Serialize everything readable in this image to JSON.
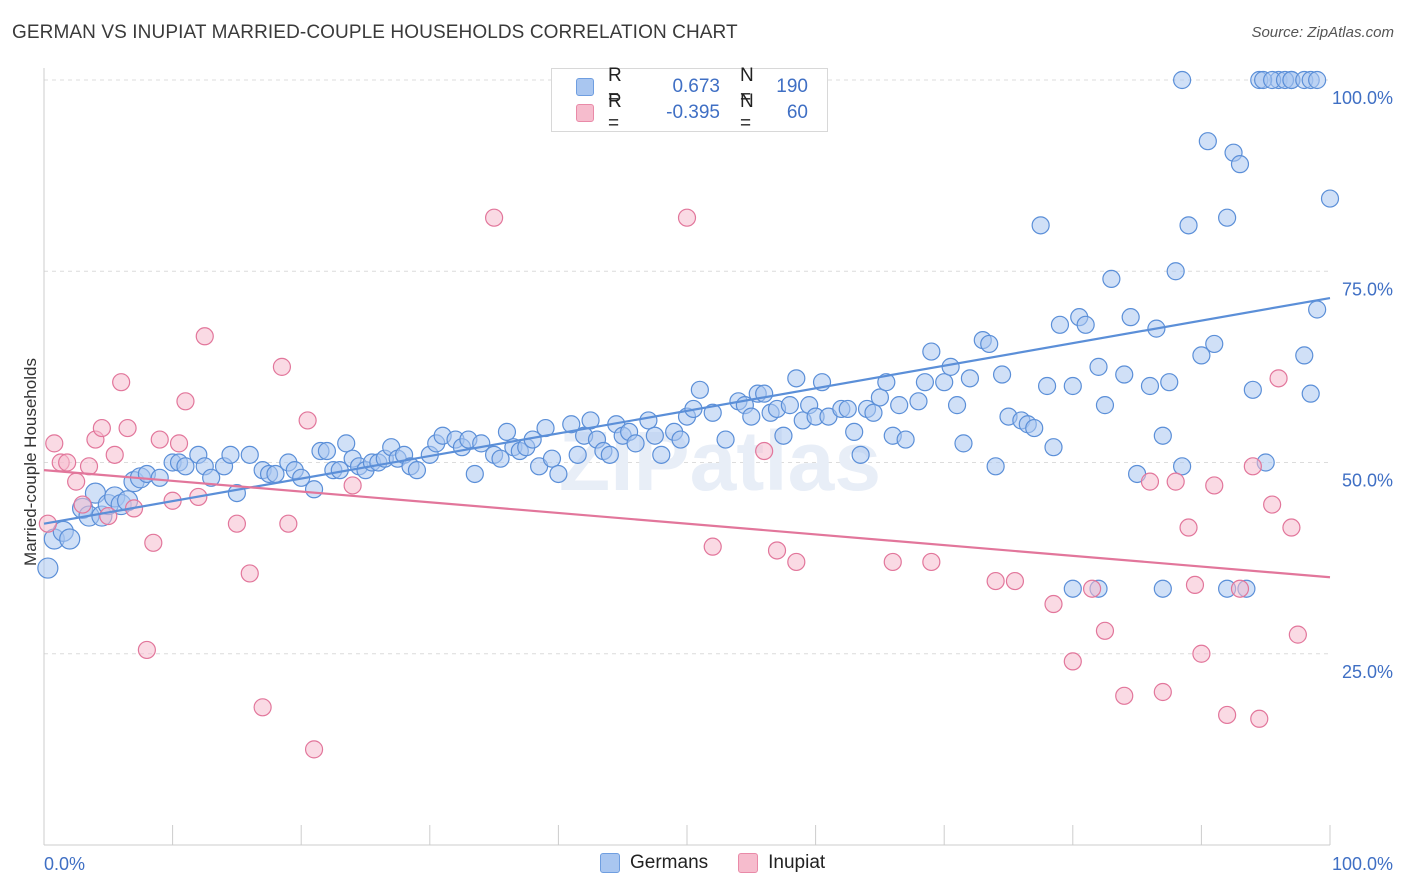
{
  "title": "GERMAN VS INUPIAT MARRIED-COUPLE HOUSEHOLDS CORRELATION CHART",
  "source": "Source: ZipAtlas.com",
  "watermark": "ZIPatlas",
  "legend": {
    "r_label": "R =",
    "n_label": "N =",
    "rows": [
      {
        "r": "0.673",
        "n": "190",
        "fill": "#a9c6f0",
        "stroke": "#6f9ee0"
      },
      {
        "r": "-0.395",
        "n": "60",
        "fill": "#f6bccd",
        "stroke": "#e98aa8"
      }
    ]
  },
  "bottom_legend": [
    {
      "label": "Germans",
      "fill": "#a9c6f0",
      "stroke": "#6f9ee0"
    },
    {
      "label": "Inupiat",
      "fill": "#f6bccd",
      "stroke": "#e98aa8"
    }
  ],
  "chart_data": {
    "type": "scatter",
    "title": "GERMAN VS INUPIAT MARRIED-COUPLE HOUSEHOLDS CORRELATION CHART",
    "xlabel": "",
    "ylabel": "Married-couple Households",
    "xlim": [
      0,
      100
    ],
    "ylim": [
      0,
      100
    ],
    "x_tick_labels": [
      "0.0%",
      "100.0%"
    ],
    "y_ticks": [
      25,
      50,
      75,
      100
    ],
    "y_tick_labels": [
      "25.0%",
      "50.0%",
      "75.0%",
      "100.0%"
    ],
    "grid": true,
    "series": [
      {
        "name": "Germans",
        "color": "#5b8fd8",
        "fill": "#a9c6f0",
        "trend": [
          [
            0,
            42.0
          ],
          [
            100,
            71.5
          ]
        ],
        "points": [
          [
            0.3,
            36.2
          ],
          [
            0.8,
            40
          ],
          [
            1.5,
            41
          ],
          [
            2,
            40
          ],
          [
            3,
            44
          ],
          [
            3.5,
            43
          ],
          [
            4,
            46
          ],
          [
            4.5,
            43
          ],
          [
            5,
            44.5
          ],
          [
            5.5,
            45.5
          ],
          [
            6,
            44.5
          ],
          [
            6.5,
            45
          ],
          [
            7,
            47.5
          ],
          [
            7.5,
            48
          ],
          [
            8,
            48.5
          ],
          [
            9,
            48
          ],
          [
            10,
            50
          ],
          [
            10.5,
            50
          ],
          [
            11,
            49.5
          ],
          [
            12,
            51
          ],
          [
            12.5,
            49.5
          ],
          [
            13,
            48
          ],
          [
            14,
            49.5
          ],
          [
            14.5,
            51
          ],
          [
            15,
            46
          ],
          [
            16,
            51
          ],
          [
            17,
            49
          ],
          [
            17.5,
            48.5
          ],
          [
            18,
            48.5
          ],
          [
            19,
            50
          ],
          [
            19.5,
            49
          ],
          [
            20,
            48
          ],
          [
            21,
            46.5
          ],
          [
            21.5,
            51.5
          ],
          [
            22,
            51.5
          ],
          [
            22.5,
            49
          ],
          [
            23,
            49
          ],
          [
            23.5,
            52.5
          ],
          [
            24,
            50.5
          ],
          [
            24.5,
            49.5
          ],
          [
            25,
            49
          ],
          [
            25.5,
            50
          ],
          [
            26,
            50
          ],
          [
            26.5,
            50.5
          ],
          [
            27,
            52
          ],
          [
            27.5,
            50.5
          ],
          [
            28,
            51
          ],
          [
            28.5,
            49.5
          ],
          [
            29,
            49
          ],
          [
            30,
            51
          ],
          [
            30.5,
            52.5
          ],
          [
            31,
            53.5
          ],
          [
            32,
            53
          ],
          [
            32.5,
            52
          ],
          [
            33,
            53
          ],
          [
            33.5,
            48.5
          ],
          [
            34,
            52.5
          ],
          [
            35,
            51
          ],
          [
            35.5,
            50.5
          ],
          [
            36,
            54
          ],
          [
            36.5,
            52
          ],
          [
            37,
            51.5
          ],
          [
            37.5,
            52
          ],
          [
            38,
            53
          ],
          [
            38.5,
            49.5
          ],
          [
            39,
            54.5
          ],
          [
            39.5,
            50.5
          ],
          [
            40,
            48.5
          ],
          [
            41,
            55
          ],
          [
            41.5,
            51
          ],
          [
            42,
            53.5
          ],
          [
            42.5,
            55.5
          ],
          [
            43,
            53
          ],
          [
            43.5,
            51.5
          ],
          [
            44,
            51
          ],
          [
            44.5,
            55
          ],
          [
            45,
            53.5
          ],
          [
            45.5,
            54
          ],
          [
            46,
            52.5
          ],
          [
            47,
            55.5
          ],
          [
            47.5,
            53.5
          ],
          [
            48,
            51
          ],
          [
            49,
            54
          ],
          [
            49.5,
            53
          ],
          [
            50,
            56
          ],
          [
            50.5,
            57
          ],
          [
            51,
            59.5
          ],
          [
            52,
            56.5
          ],
          [
            53,
            53
          ],
          [
            54,
            58
          ],
          [
            54.5,
            57.5
          ],
          [
            55,
            56
          ],
          [
            55.5,
            59
          ],
          [
            56,
            59
          ],
          [
            56.5,
            56.5
          ],
          [
            57,
            57
          ],
          [
            57.5,
            53.5
          ],
          [
            58,
            57.5
          ],
          [
            58.5,
            61
          ],
          [
            59,
            55.5
          ],
          [
            59.5,
            57.5
          ],
          [
            60,
            56
          ],
          [
            60.5,
            60.5
          ],
          [
            61,
            56
          ],
          [
            62,
            57
          ],
          [
            62.5,
            57
          ],
          [
            63,
            54
          ],
          [
            63.5,
            51
          ],
          [
            64,
            57
          ],
          [
            64.5,
            56.5
          ],
          [
            65,
            58.5
          ],
          [
            65.5,
            60.5
          ],
          [
            66,
            53.5
          ],
          [
            66.5,
            57.5
          ],
          [
            67,
            53
          ],
          [
            68,
            58
          ],
          [
            68.5,
            60.5
          ],
          [
            69,
            64.5
          ],
          [
            70,
            60.5
          ],
          [
            70.5,
            62.5
          ],
          [
            71,
            57.5
          ],
          [
            71.5,
            52.5
          ],
          [
            72,
            61
          ],
          [
            73,
            66
          ],
          [
            73.5,
            65.5
          ],
          [
            74,
            49.5
          ],
          [
            74.5,
            61.5
          ],
          [
            75,
            56
          ],
          [
            76,
            55.5
          ],
          [
            76.5,
            55
          ],
          [
            77,
            54.5
          ],
          [
            77.5,
            81
          ],
          [
            78,
            60
          ],
          [
            78.5,
            52
          ],
          [
            79,
            68
          ],
          [
            80,
            60
          ],
          [
            80.5,
            69
          ],
          [
            81,
            68
          ],
          [
            82,
            62.5
          ],
          [
            82.5,
            57.5
          ],
          [
            83,
            74
          ],
          [
            84,
            61.5
          ],
          [
            84.5,
            69
          ],
          [
            85,
            48.5
          ],
          [
            86,
            60
          ],
          [
            86.5,
            67.5
          ],
          [
            87,
            53.5
          ],
          [
            87.5,
            60.5
          ],
          [
            88,
            75
          ],
          [
            88.5,
            49.5
          ],
          [
            89,
            81
          ],
          [
            90,
            64
          ],
          [
            90.5,
            92
          ],
          [
            91,
            65.5
          ],
          [
            92,
            82
          ],
          [
            92.5,
            90.5
          ],
          [
            93,
            89
          ],
          [
            93.5,
            33.5
          ],
          [
            94,
            59.5
          ],
          [
            95,
            50
          ],
          [
            96,
            100
          ],
          [
            97,
            100
          ],
          [
            98,
            64
          ],
          [
            98.5,
            59
          ],
          [
            99,
            70
          ],
          [
            100,
            84.5
          ],
          [
            88.5,
            100
          ],
          [
            94.5,
            100
          ],
          [
            94.8,
            100
          ],
          [
            95.5,
            100
          ],
          [
            96.5,
            100
          ],
          [
            97,
            100
          ],
          [
            98,
            100
          ],
          [
            98.5,
            100
          ],
          [
            99,
            100
          ],
          [
            80,
            33.5
          ],
          [
            82,
            33.5
          ],
          [
            87,
            33.5
          ],
          [
            92,
            33.5
          ]
        ]
      },
      {
        "name": "Inupiat",
        "color": "#e2769b",
        "fill": "#f6bccd",
        "trend": [
          [
            0,
            49.0
          ],
          [
            100,
            35.0
          ]
        ],
        "points": [
          [
            0.3,
            42
          ],
          [
            0.8,
            52.5
          ],
          [
            1.3,
            50
          ],
          [
            1.8,
            50
          ],
          [
            2.5,
            47.5
          ],
          [
            3,
            44.5
          ],
          [
            3.5,
            49.5
          ],
          [
            4,
            53
          ],
          [
            4.5,
            54.5
          ],
          [
            5,
            43
          ],
          [
            5.5,
            51
          ],
          [
            6,
            60.5
          ],
          [
            6.5,
            54.5
          ],
          [
            7,
            44
          ],
          [
            8,
            25.5
          ],
          [
            8.5,
            39.5
          ],
          [
            9,
            53
          ],
          [
            10,
            45
          ],
          [
            10.5,
            52.5
          ],
          [
            11,
            58
          ],
          [
            12,
            45.5
          ],
          [
            12.5,
            66.5
          ],
          [
            15,
            42
          ],
          [
            16,
            35.5
          ],
          [
            17,
            18
          ],
          [
            18.5,
            62.5
          ],
          [
            19,
            42
          ],
          [
            20.5,
            55.5
          ],
          [
            21,
            12.5
          ],
          [
            24,
            47
          ],
          [
            35,
            82
          ],
          [
            50,
            82
          ],
          [
            52,
            39
          ],
          [
            56,
            51.5
          ],
          [
            57,
            38.5
          ],
          [
            58.5,
            37
          ],
          [
            66,
            37
          ],
          [
            69,
            37
          ],
          [
            74,
            34.5
          ],
          [
            75.5,
            34.5
          ],
          [
            78.5,
            31.5
          ],
          [
            80,
            24
          ],
          [
            81.5,
            33.5
          ],
          [
            82.5,
            28
          ],
          [
            84,
            19.5
          ],
          [
            86,
            47.5
          ],
          [
            87,
            20
          ],
          [
            88,
            47.5
          ],
          [
            89,
            41.5
          ],
          [
            89.5,
            34
          ],
          [
            90,
            25
          ],
          [
            91,
            47
          ],
          [
            92,
            17
          ],
          [
            93,
            33.5
          ],
          [
            94,
            49.5
          ],
          [
            94.5,
            16.5
          ],
          [
            95.5,
            44.5
          ],
          [
            96,
            61
          ],
          [
            97,
            41.5
          ],
          [
            97.5,
            27.5
          ]
        ]
      }
    ]
  }
}
